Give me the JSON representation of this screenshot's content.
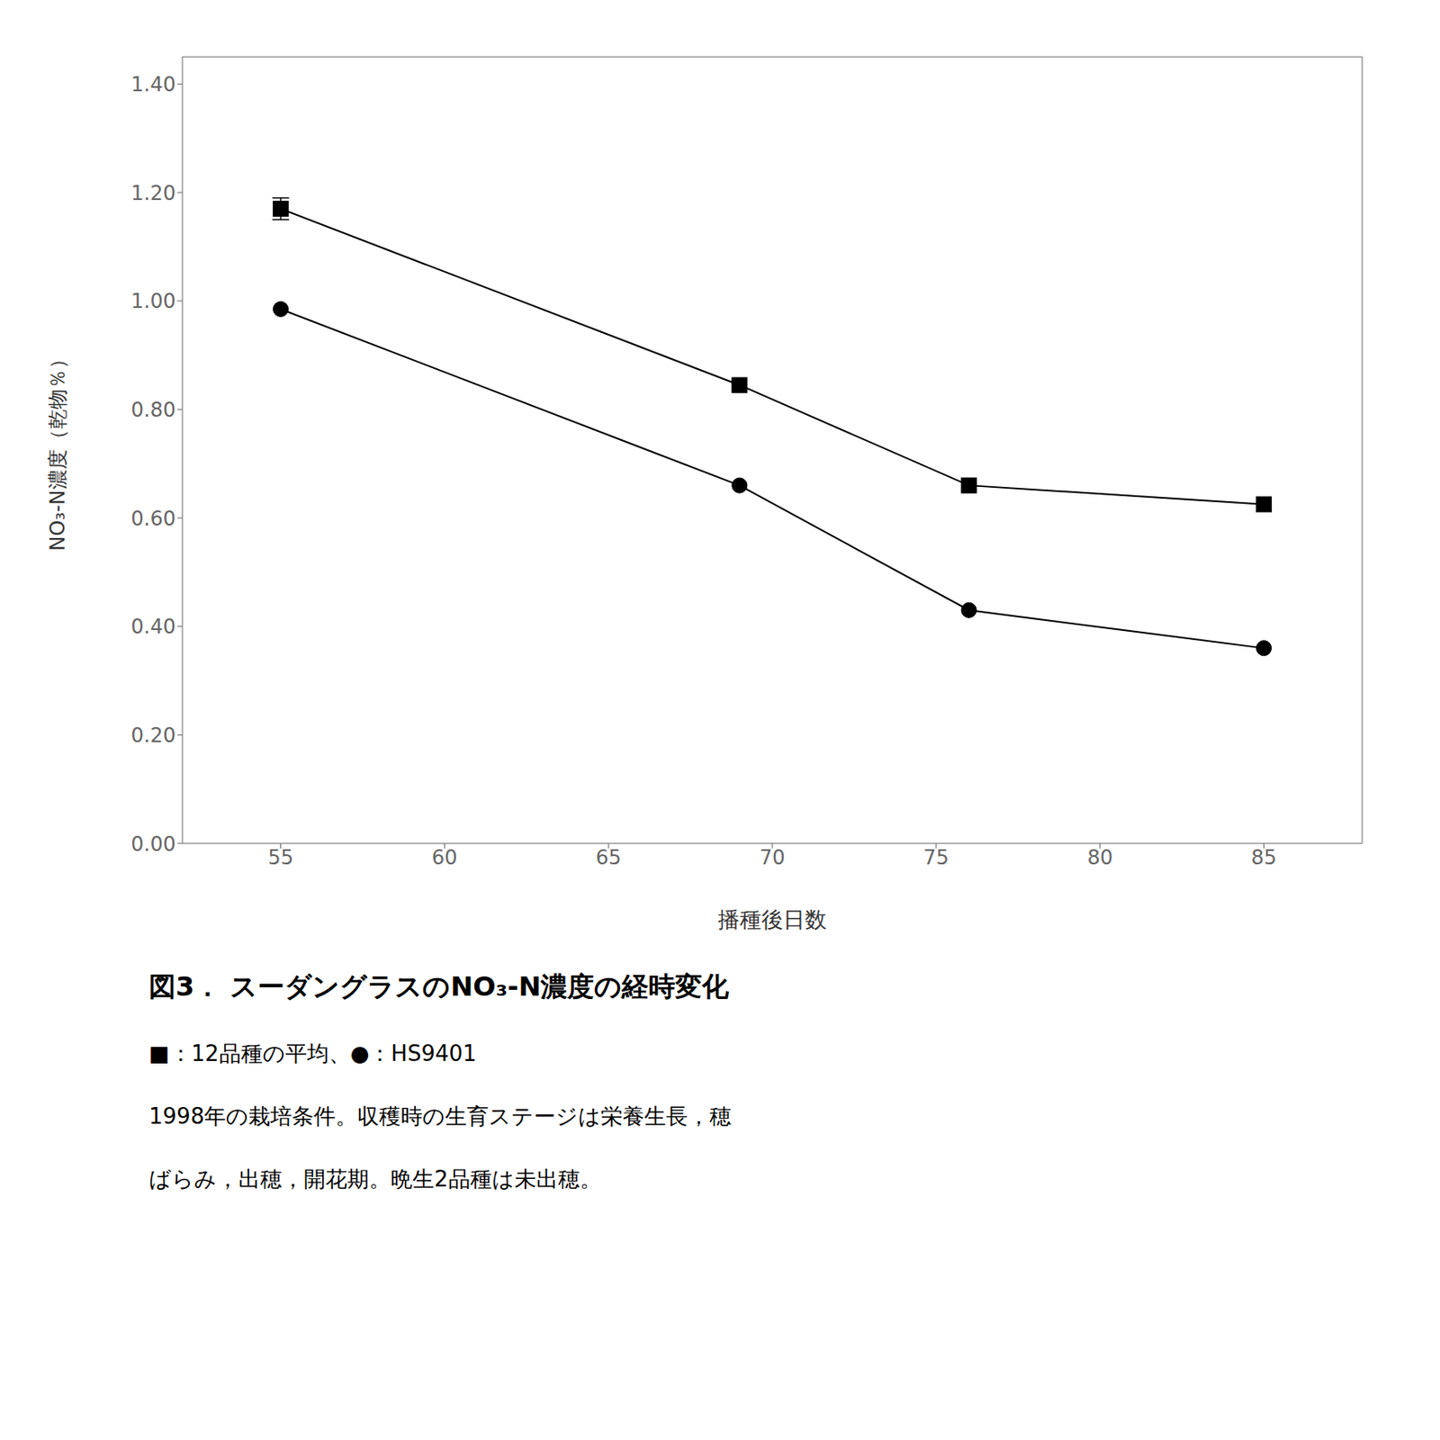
{
  "chart_data": {
    "type": "line",
    "title": "図3． スーダングラスのNO₃-N濃度の経時変化",
    "annotations": [
      "■：12品種の平均、●：HS9401",
      "1998年の栽培条件。収穫時の生育ステージは栄養生長，穂",
      "ばらみ，出穂，開花期。晩生2品種は未出穂。"
    ],
    "x_label": "播種後日数",
    "y_label": "NO₃-N濃度（乾物％）",
    "x": [
      55,
      69,
      76,
      85
    ],
    "series": [
      {
        "color": "#000000",
        "marker": "square",
        "line_style": "solid",
        "values": [
          1.17,
          0.845,
          0.66,
          0.625
        ],
        "errors": [
          0.02,
          0.0,
          0.0,
          0.0
        ]
      },
      {
        "color": "#000000",
        "marker": "circle",
        "line_style": "solid",
        "values": [
          0.985,
          0.66,
          0.43,
          0.36
        ]
      }
    ],
    "xlim": [
      52,
      88
    ],
    "ylim": [
      0.0,
      1.45
    ],
    "xticks": [
      55,
      60,
      65,
      70,
      75,
      80,
      85
    ],
    "yticks": [
      {
        "value": 0.0,
        "label": "0.00"
      },
      {
        "value": 0.2,
        "label": "0.20"
      },
      {
        "value": 0.4,
        "label": "0.40"
      },
      {
        "value": 0.6,
        "label": "0.60"
      },
      {
        "value": 0.8,
        "label": "0.80"
      },
      {
        "value": 1.0,
        "label": "1.00"
      },
      {
        "value": 1.2,
        "label": "1.20"
      },
      {
        "value": 1.4,
        "label": "1.40"
      }
    ],
    "grid": false
  }
}
